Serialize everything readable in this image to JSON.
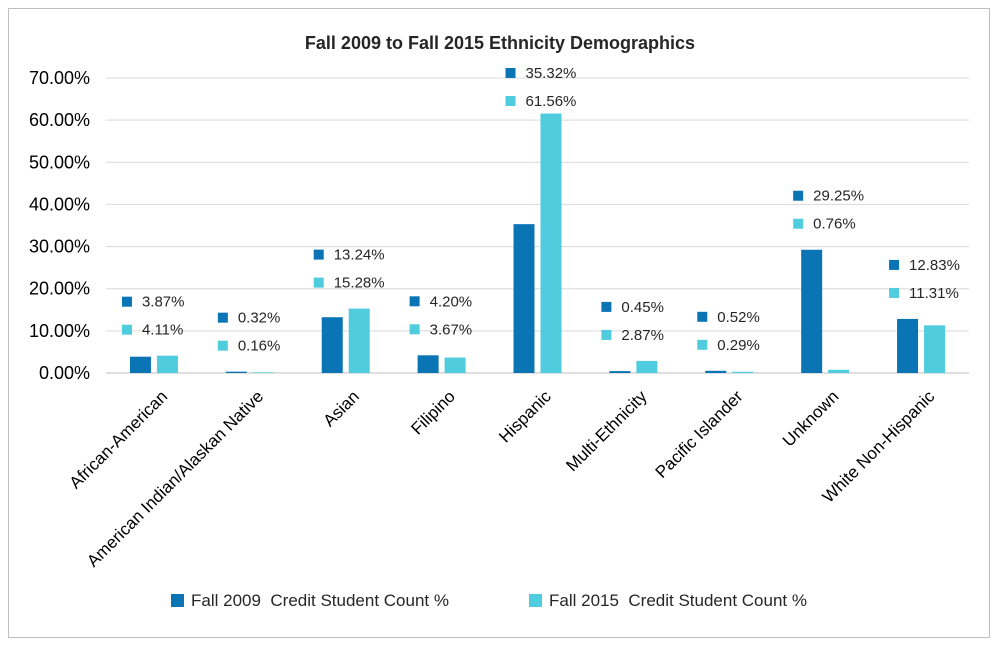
{
  "chart_data": {
    "type": "bar",
    "title": "Fall 2009 to Fall 2015 Ethnicity Demographics",
    "xlabel": "",
    "ylabel": "",
    "categories": [
      "African-American",
      "American Indian/Alaskan Native",
      "Asian",
      "Filipino",
      "Hispanic",
      "Multi-Ethnicity",
      "Pacific Islander",
      "Unknown",
      "White Non-Hispanic"
    ],
    "series": [
      {
        "name": "Fall 2009  Credit Student Count %",
        "color": "#0B74B5",
        "values": [
          3.87,
          0.32,
          13.24,
          4.2,
          35.32,
          0.45,
          0.52,
          29.25,
          12.83
        ],
        "labels": [
          "3.87%",
          "0.32%",
          "13.24%",
          "4.20%",
          "35.32%",
          "0.45%",
          "0.52%",
          "29.25%",
          "12.83%"
        ]
      },
      {
        "name": "Fall 2015  Credit Student Count %",
        "color": "#4FCCDD",
        "values": [
          4.11,
          0.16,
          15.28,
          3.67,
          61.56,
          2.87,
          0.29,
          0.76,
          11.31
        ],
        "labels": [
          "4.11%",
          "0.16%",
          "15.28%",
          "3.67%",
          "61.56%",
          "2.87%",
          "0.29%",
          "0.76%",
          "11.31%"
        ]
      }
    ],
    "ylim": [
      0,
      70
    ],
    "yticks": [
      0,
      10,
      20,
      30,
      40,
      50,
      60,
      70
    ],
    "ytick_labels": [
      "0.00%",
      "10.00%",
      "20.00%",
      "30.00%",
      "40.00%",
      "50.00%",
      "60.00%",
      "70.00%"
    ],
    "grid": true,
    "legend_position": "bottom"
  }
}
